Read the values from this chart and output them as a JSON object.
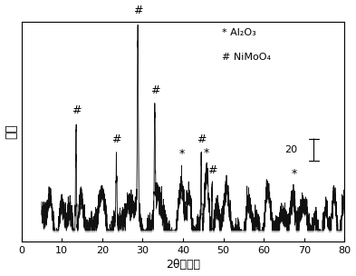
{
  "title": "",
  "xlabel": "2θ（度）",
  "ylabel": "强度",
  "xlim": [
    0,
    80
  ],
  "x_ticks": [
    0,
    10,
    20,
    30,
    40,
    50,
    60,
    70,
    80
  ],
  "background_color": "#ffffff",
  "nimoo4_peaks": [
    {
      "x": 13.5,
      "height": 85
    },
    {
      "x": 23.5,
      "height": 42
    },
    {
      "x": 28.8,
      "height": 130
    },
    {
      "x": 33.0,
      "height": 72
    },
    {
      "x": 44.5,
      "height": 55
    },
    {
      "x": 47.2,
      "height": 38
    }
  ],
  "al2o3_peaks": [
    {
      "x": 39.8,
      "height": 18
    },
    {
      "x": 45.8,
      "height": 20
    },
    {
      "x": 67.5,
      "height": 22
    }
  ],
  "ylim": [
    -8,
    155
  ],
  "scale_bar_value": 20,
  "noise_seed": 7,
  "line_color": "#111111",
  "line_color2": "#888888",
  "legend_star_label": "* Al₂O₃",
  "legend_hash_label": "# NiMoO₄"
}
